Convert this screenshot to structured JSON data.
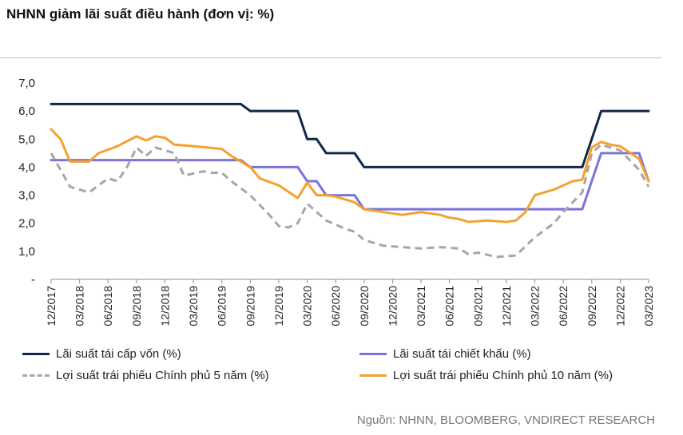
{
  "title": "NHNN giảm lãi suất điều hành (đơn vị: %)",
  "source": "Nguồn: NHNN, BLOOMBERG, VNDIRECT RESEARCH",
  "chart_data": {
    "type": "line",
    "title": "NHNN giảm lãi suất điều hành (đơn vị: %)",
    "ylim": [
      0,
      7
    ],
    "y_ticks": [
      0,
      1,
      2,
      3,
      4,
      5,
      6,
      7
    ],
    "y_tick_labels": [
      "-",
      "1,0",
      "2,0",
      "3,0",
      "4,0",
      "5,0",
      "6,0",
      "7,0"
    ],
    "x_ticks": [
      "12/2017",
      "03/2018",
      "06/2018",
      "09/2018",
      "12/2018",
      "03/2019",
      "06/2019",
      "09/2019",
      "12/2019",
      "03/2020",
      "06/2020",
      "09/2020",
      "12/2020",
      "03/2021",
      "06/2021",
      "09/2021",
      "12/2021",
      "03/2022",
      "06/2022",
      "09/2022",
      "12/2022",
      "03/2023"
    ],
    "x_range": [
      "12/2017",
      "03/2023"
    ],
    "grid": false,
    "legend_position": "bottom",
    "series": [
      {
        "name": "Lãi suất tái cấp vốn (%)",
        "color": "#12284a",
        "style": "solid",
        "points": [
          [
            "12/2017",
            6.25
          ],
          [
            "08/2019",
            6.25
          ],
          [
            "09/2019",
            6.0
          ],
          [
            "02/2020",
            6.0
          ],
          [
            "03/2020",
            5.0
          ],
          [
            "04/2020",
            5.0
          ],
          [
            "05/2020",
            4.5
          ],
          [
            "08/2020",
            4.5
          ],
          [
            "09/2020",
            4.0
          ],
          [
            "08/2022",
            4.0
          ],
          [
            "10/2022",
            6.0
          ],
          [
            "03/2023",
            6.0
          ]
        ]
      },
      {
        "name": "Lãi suất tái chiết khấu (%)",
        "color": "#7b74d8",
        "style": "solid",
        "points": [
          [
            "12/2017",
            4.25
          ],
          [
            "08/2019",
            4.25
          ],
          [
            "09/2019",
            4.0
          ],
          [
            "02/2020",
            4.0
          ],
          [
            "03/2020",
            3.5
          ],
          [
            "04/2020",
            3.5
          ],
          [
            "05/2020",
            3.0
          ],
          [
            "08/2020",
            3.0
          ],
          [
            "09/2020",
            2.5
          ],
          [
            "08/2022",
            2.5
          ],
          [
            "10/2022",
            4.5
          ],
          [
            "02/2023",
            4.5
          ],
          [
            "03/2023",
            3.5
          ]
        ]
      },
      {
        "name": "Lợi suất trái phiếu Chính phủ 5 năm (%)",
        "color": "#a6a6a6",
        "style": "dashed",
        "points": [
          [
            "12/2017",
            4.5
          ],
          [
            "02/2018",
            3.3
          ],
          [
            "04/2018",
            3.1
          ],
          [
            "06/2018",
            3.6
          ],
          [
            "07/2018",
            3.5
          ],
          [
            "08/2018",
            4.0
          ],
          [
            "09/2018",
            4.7
          ],
          [
            "10/2018",
            4.4
          ],
          [
            "11/2018",
            4.7
          ],
          [
            "01/2019",
            4.5
          ],
          [
            "02/2019",
            3.7
          ],
          [
            "04/2019",
            3.85
          ],
          [
            "05/2019",
            3.8
          ],
          [
            "06/2019",
            3.8
          ],
          [
            "07/2019",
            3.5
          ],
          [
            "09/2019",
            3.0
          ],
          [
            "11/2019",
            2.3
          ],
          [
            "12/2019",
            1.9
          ],
          [
            "01/2020",
            1.85
          ],
          [
            "02/2020",
            2.0
          ],
          [
            "03/2020",
            2.7
          ],
          [
            "05/2020",
            2.1
          ],
          [
            "07/2020",
            1.8
          ],
          [
            "08/2020",
            1.7
          ],
          [
            "09/2020",
            1.4
          ],
          [
            "11/2020",
            1.2
          ],
          [
            "01/2021",
            1.15
          ],
          [
            "03/2021",
            1.1
          ],
          [
            "05/2021",
            1.15
          ],
          [
            "07/2021",
            1.1
          ],
          [
            "08/2021",
            0.9
          ],
          [
            "09/2021",
            0.95
          ],
          [
            "11/2021",
            0.8
          ],
          [
            "01/2022",
            0.85
          ],
          [
            "03/2022",
            1.5
          ],
          [
            "05/2022",
            2.0
          ],
          [
            "06/2022",
            2.4
          ],
          [
            "08/2022",
            3.1
          ],
          [
            "09/2022",
            4.5
          ],
          [
            "10/2022",
            4.8
          ],
          [
            "12/2022",
            4.6
          ],
          [
            "02/2023",
            3.9
          ],
          [
            "03/2023",
            3.3
          ]
        ]
      },
      {
        "name": "Lợi suất trái phiếu Chính phủ 10 năm (%)",
        "color": "#f4a12e",
        "style": "solid",
        "points": [
          [
            "12/2017",
            5.35
          ],
          [
            "01/2018",
            5.0
          ],
          [
            "02/2018",
            4.2
          ],
          [
            "04/2018",
            4.2
          ],
          [
            "05/2018",
            4.5
          ],
          [
            "07/2018",
            4.75
          ],
          [
            "09/2018",
            5.1
          ],
          [
            "10/2018",
            4.95
          ],
          [
            "11/2018",
            5.1
          ],
          [
            "12/2018",
            5.05
          ],
          [
            "01/2019",
            4.8
          ],
          [
            "03/2019",
            4.75
          ],
          [
            "06/2019",
            4.65
          ],
          [
            "07/2019",
            4.4
          ],
          [
            "09/2019",
            4.0
          ],
          [
            "10/2019",
            3.6
          ],
          [
            "12/2019",
            3.35
          ],
          [
            "02/2020",
            2.9
          ],
          [
            "03/2020",
            3.45
          ],
          [
            "04/2020",
            3.0
          ],
          [
            "05/2020",
            3.0
          ],
          [
            "06/2020",
            2.95
          ],
          [
            "08/2020",
            2.75
          ],
          [
            "09/2020",
            2.5
          ],
          [
            "11/2020",
            2.4
          ],
          [
            "01/2021",
            2.3
          ],
          [
            "03/2021",
            2.4
          ],
          [
            "05/2021",
            2.3
          ],
          [
            "06/2021",
            2.2
          ],
          [
            "07/2021",
            2.15
          ],
          [
            "08/2021",
            2.05
          ],
          [
            "10/2021",
            2.1
          ],
          [
            "12/2021",
            2.05
          ],
          [
            "01/2022",
            2.1
          ],
          [
            "02/2022",
            2.4
          ],
          [
            "03/2022",
            3.0
          ],
          [
            "05/2022",
            3.2
          ],
          [
            "07/2022",
            3.5
          ],
          [
            "08/2022",
            3.55
          ],
          [
            "09/2022",
            4.7
          ],
          [
            "10/2022",
            4.9
          ],
          [
            "11/2022",
            4.8
          ],
          [
            "12/2022",
            4.75
          ],
          [
            "02/2023",
            4.3
          ],
          [
            "03/2023",
            3.5
          ]
        ]
      }
    ]
  }
}
